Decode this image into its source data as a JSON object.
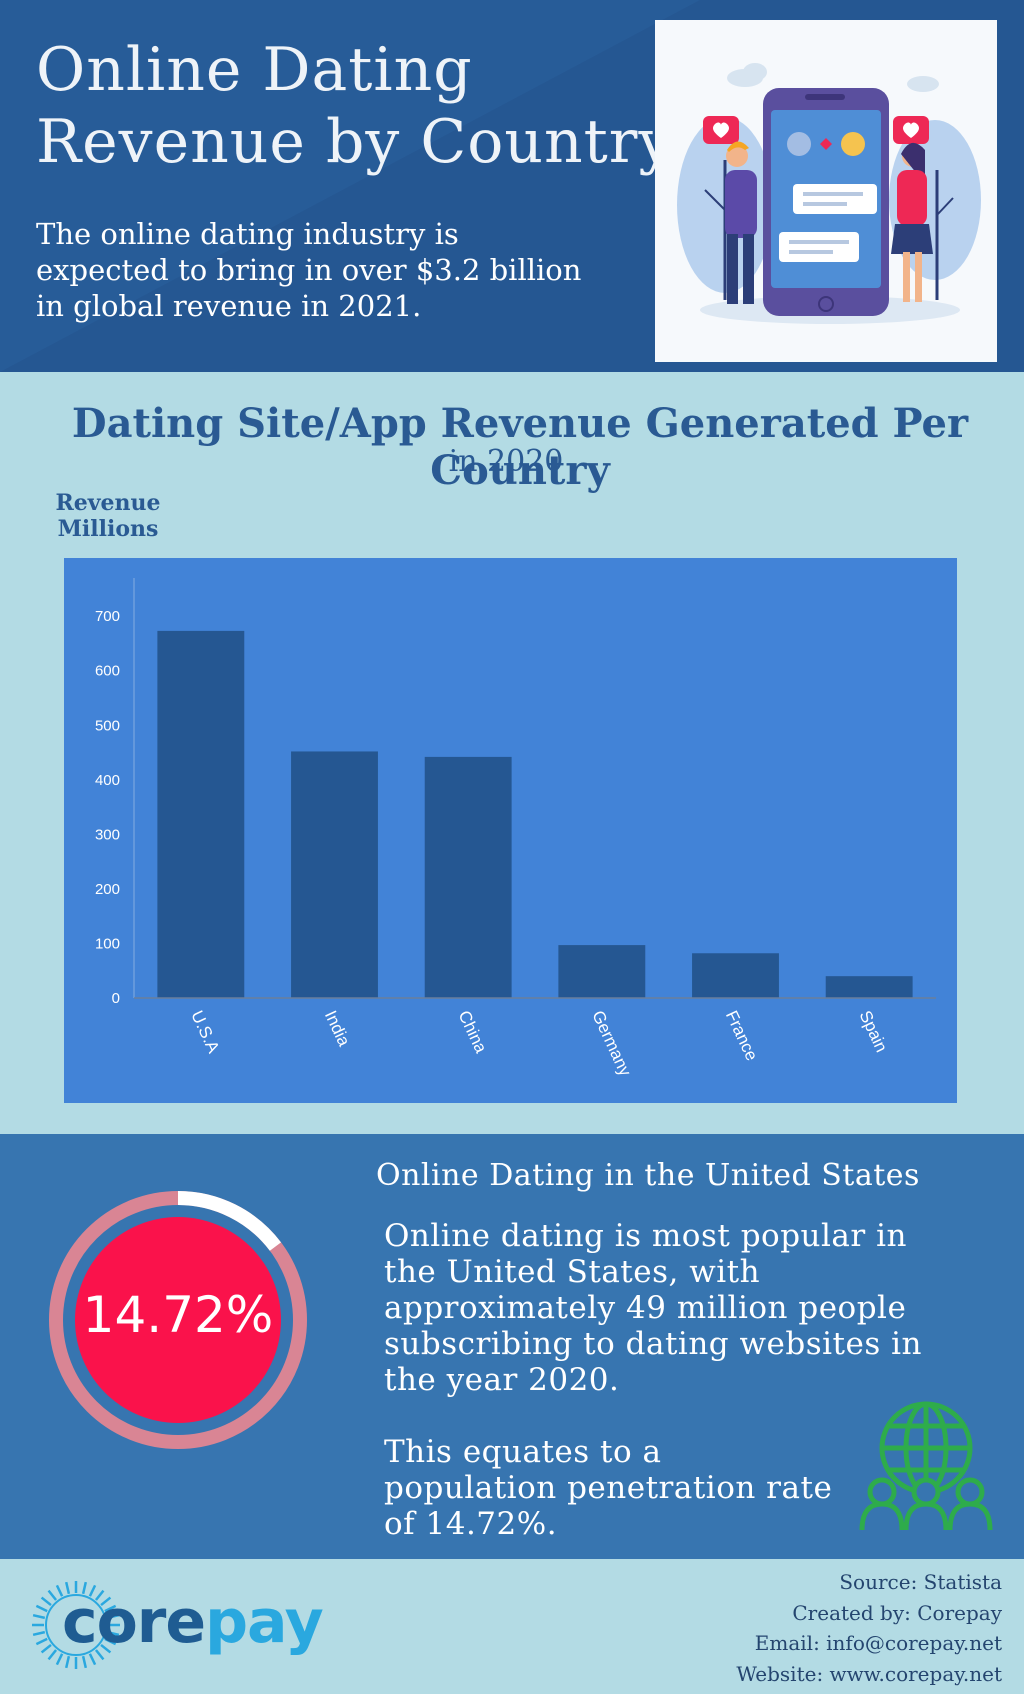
{
  "header": {
    "title_line1": "Online Dating",
    "title_line2": "Revenue by Country",
    "intro": "The online dating industry is expected to bring in over $3.2 billion in global revenue in 2021."
  },
  "chart_data": {
    "type": "bar",
    "title": "Dating Site/App Revenue Generated Per Country",
    "subtitle": "in 2020",
    "ylabel_line1": "Revenue",
    "ylabel_line2": "Millions",
    "xlabel": "",
    "categories": [
      "U.S.A",
      "India",
      "China",
      "Germany",
      "France",
      "Spain"
    ],
    "values": [
      673,
      452,
      442,
      97,
      82,
      40
    ],
    "yticks": [
      0,
      100,
      200,
      300,
      400,
      500,
      600,
      700
    ],
    "ylim": [
      0,
      770
    ],
    "grid": false,
    "legend": "none",
    "bar_color": "#255792",
    "panel_color": "#4283d7"
  },
  "stats": {
    "heading": "Online Dating in the United States",
    "paragraph1": "Online dating is most popular in the United States, with approximately 49 million people subscribing to dating websites in the year 2020.",
    "paragraph2": "This equates to a population penetration rate of 14.72%.",
    "penetration_label": "14.72%",
    "penetration_fraction": 0.1472,
    "donut_color": "#fa124b",
    "ring_color": "#d98594",
    "globe_icon": "globe-people-icon",
    "globe_color": "#2eac4b"
  },
  "footer": {
    "logo_part1": "core",
    "logo_part2": "pay",
    "source": "Source: Statista",
    "created_by": "Created by: Corepay",
    "email": "Email: info@corepay.net",
    "website": "Website: www.corepay.net"
  }
}
